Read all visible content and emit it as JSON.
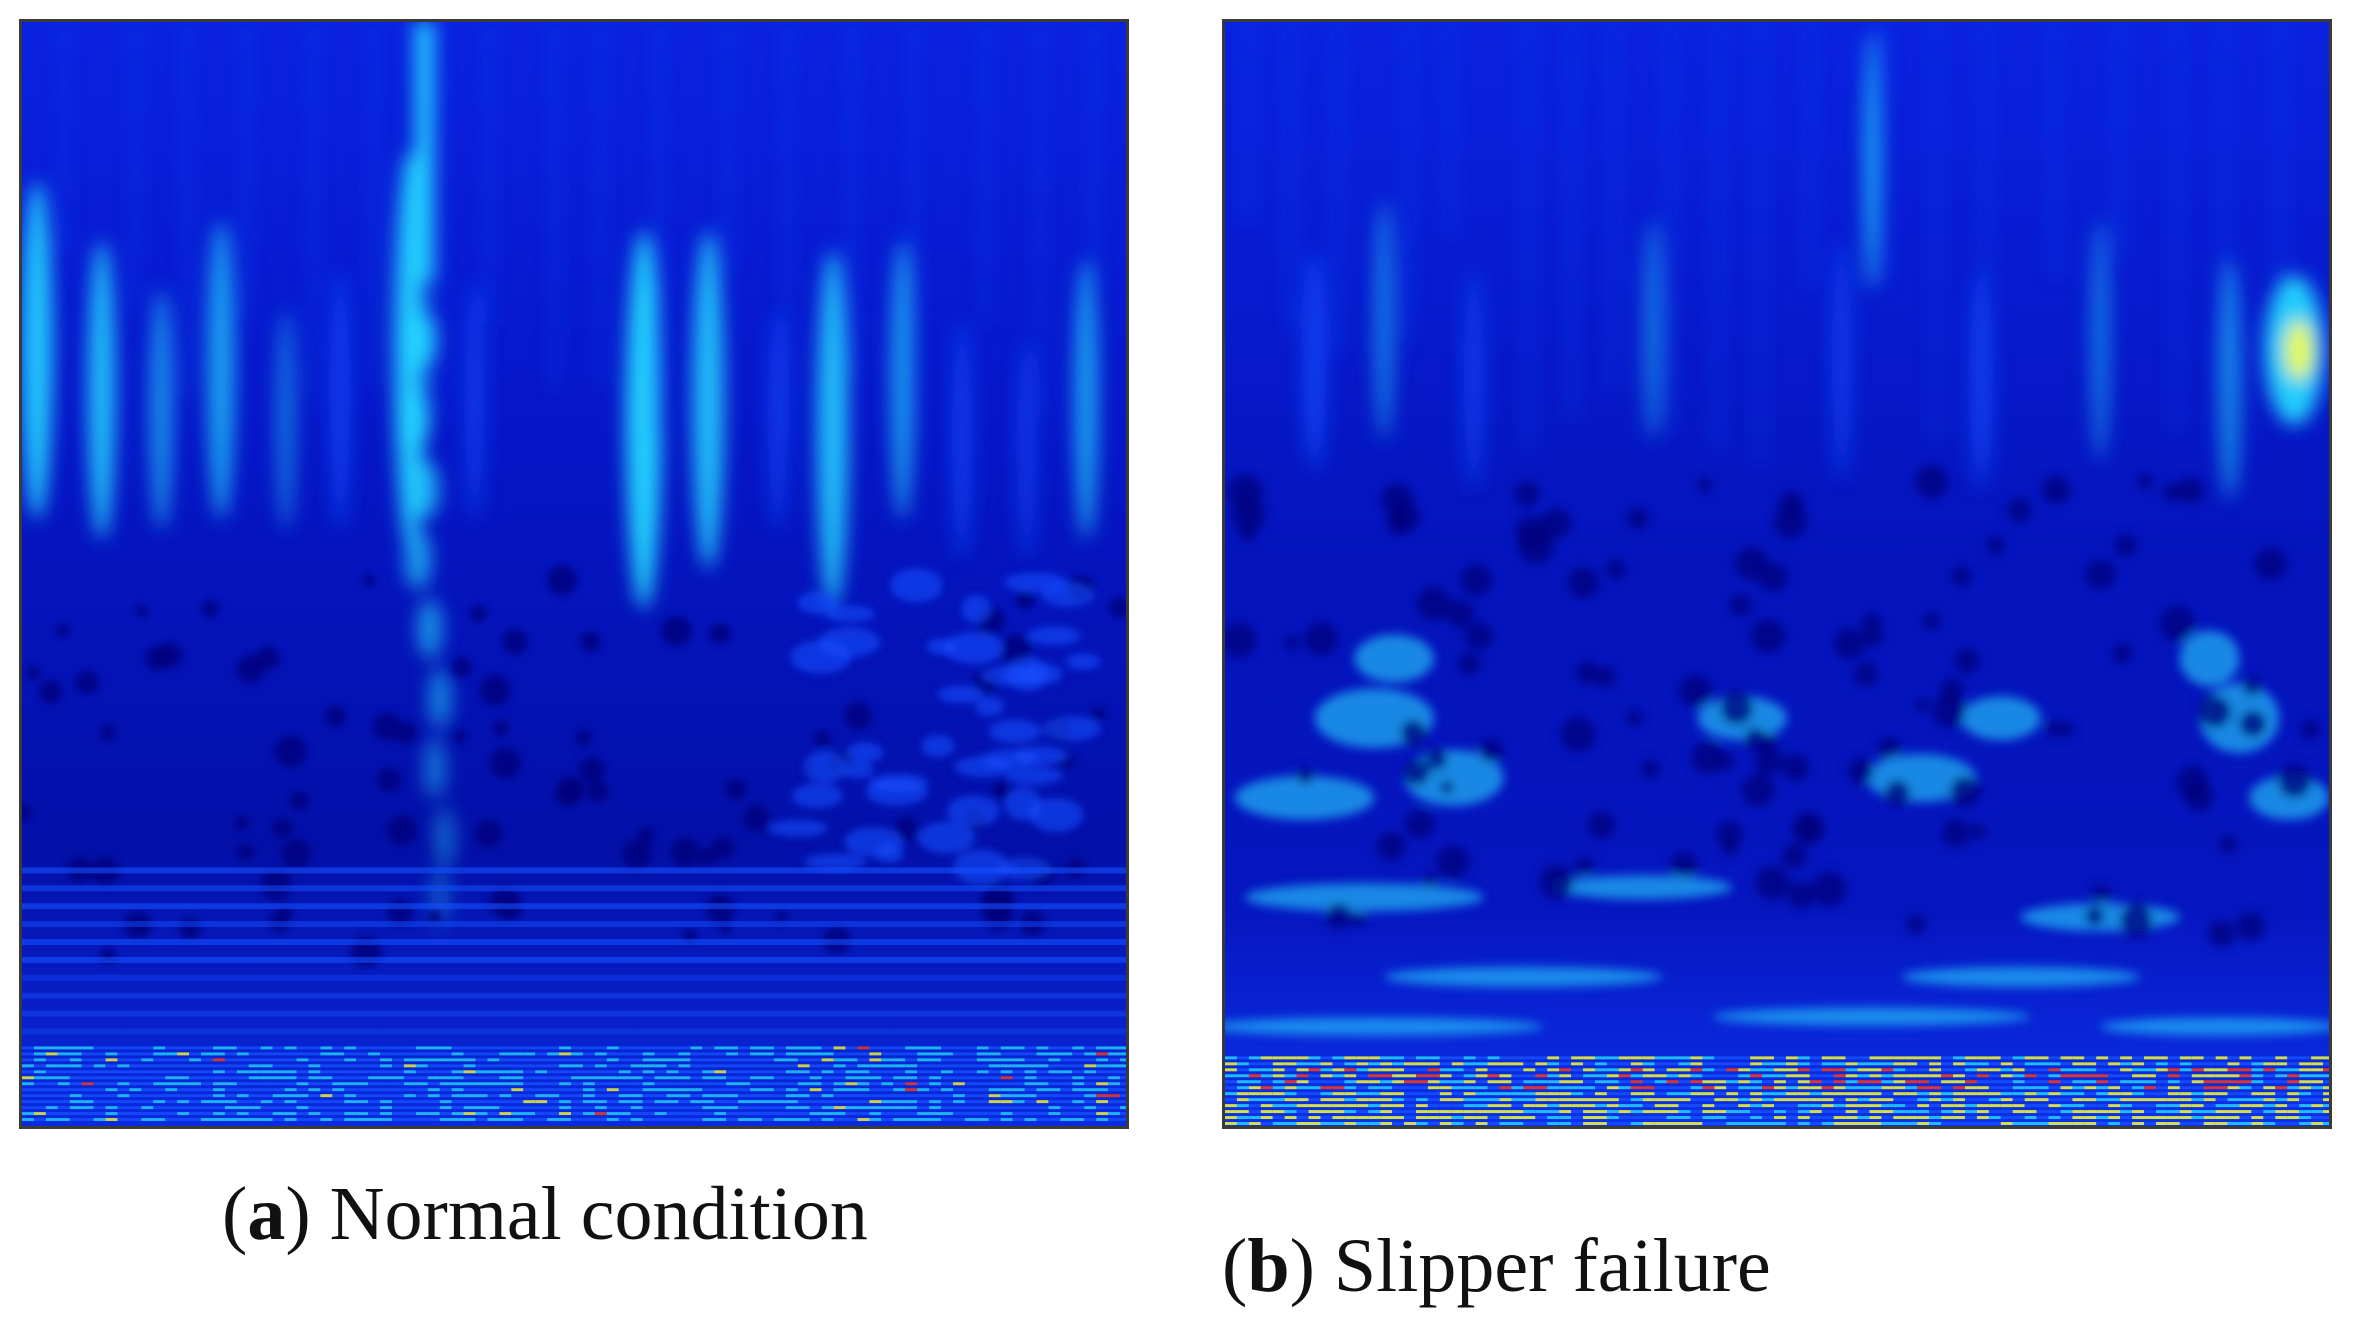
{
  "figure": {
    "panels": [
      {
        "letter": "a",
        "title": "Normal condition",
        "colormap": "jet",
        "bright_regions": [
          "narrow vertical streaks in upper half",
          "strong column near left-third",
          "dense stripes at bottom edge"
        ]
      },
      {
        "letter": "b",
        "title": "Slipper failure",
        "colormap": "jet",
        "bright_regions": [
          "faint vertical streaks in upper half",
          "yellow hotspot at upper-right",
          "cyan blobs in lower half",
          "yellow-red stripes at bottom edge"
        ]
      }
    ],
    "colors": {
      "background": "#0410b8",
      "dark": "#02037a",
      "mid": "#1550ff",
      "cyan": "#23d6ff",
      "yellow": "#f7ff2a",
      "red": "#ff3a10"
    }
  }
}
